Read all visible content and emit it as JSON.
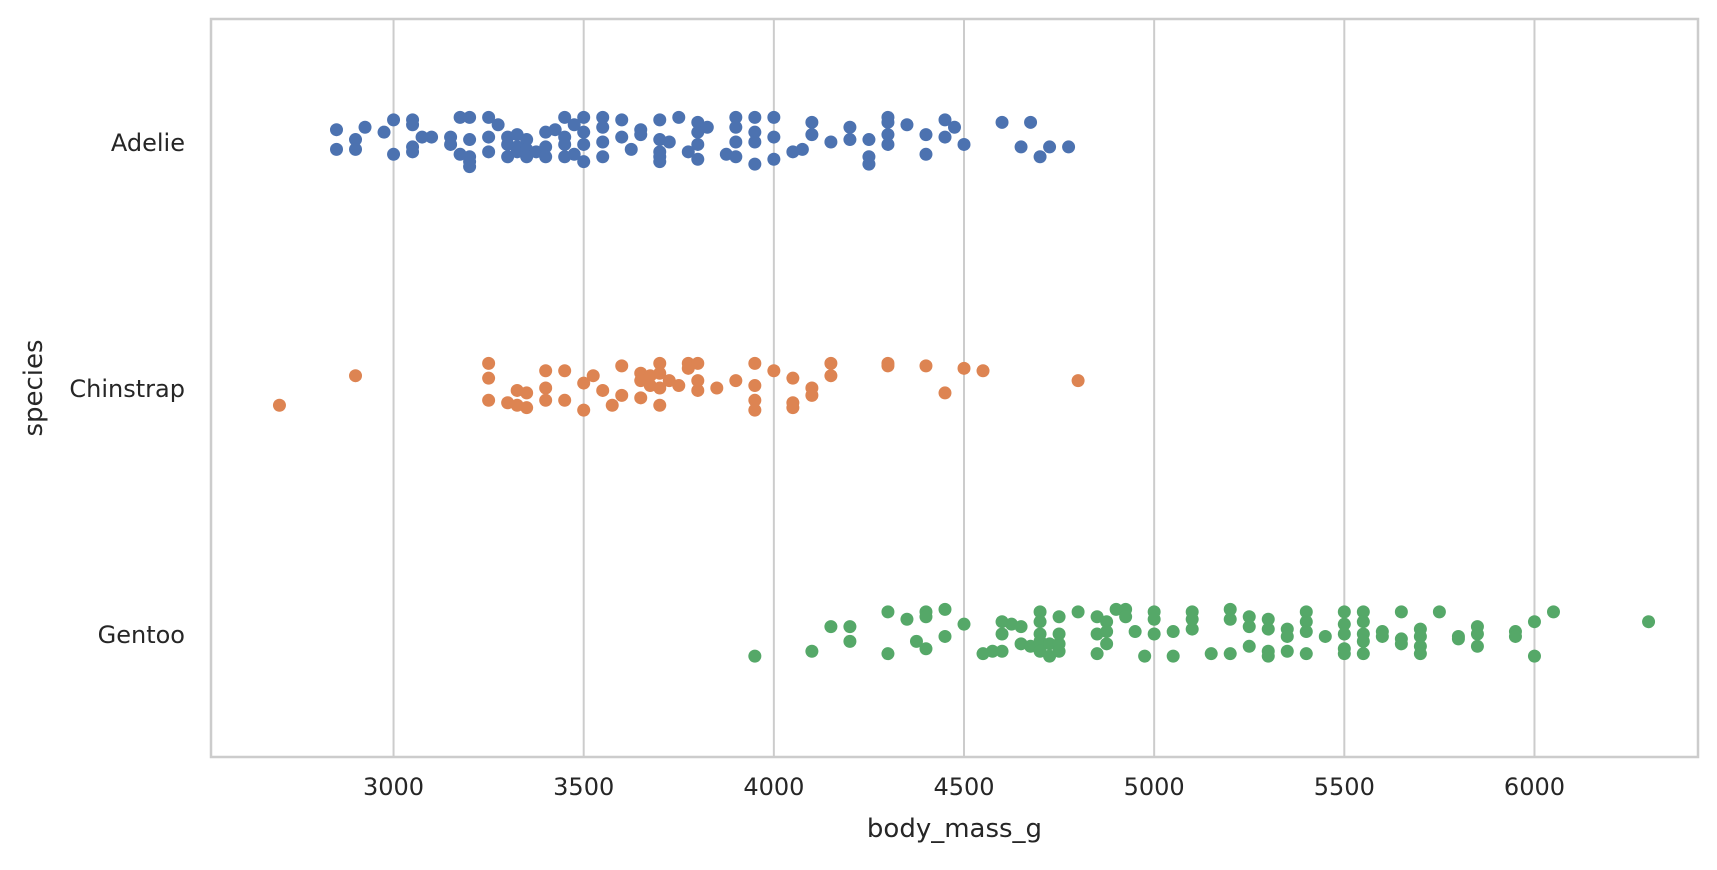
{
  "chart_data": {
    "type": "scatter",
    "subtype": "strip",
    "orientation": "horizontal",
    "xlabel": "body_mass_g",
    "ylabel": "species",
    "xlim": [
      2520,
      6430
    ],
    "xticks": [
      3000,
      3500,
      4000,
      4500,
      5000,
      5500,
      6000
    ],
    "grid": "vertical",
    "categories": [
      "Adelie",
      "Chinstrap",
      "Gentoo"
    ],
    "series": [
      {
        "name": "Adelie",
        "color": "#4c72b0",
        "points": [
          [
            2850,
            -0.05
          ],
          [
            2850,
            0.03
          ],
          [
            2900,
            -0.01
          ],
          [
            2900,
            0.03
          ],
          [
            2925,
            -0.06
          ],
          [
            2975,
            -0.04
          ],
          [
            3000,
            -0.09
          ],
          [
            3000,
            0.05
          ],
          [
            3050,
            -0.09
          ],
          [
            3050,
            -0.07
          ],
          [
            3050,
            0.02
          ],
          [
            3050,
            0.04
          ],
          [
            3075,
            -0.02
          ],
          [
            3100,
            -0.02
          ],
          [
            3150,
            -0.02
          ],
          [
            3150,
            0.01
          ],
          [
            3175,
            -0.1
          ],
          [
            3175,
            0.05
          ],
          [
            3200,
            -0.1
          ],
          [
            3200,
            -0.01
          ],
          [
            3200,
            0.06
          ],
          [
            3200,
            0.08
          ],
          [
            3200,
            0.1
          ],
          [
            3250,
            -0.1
          ],
          [
            3250,
            -0.02
          ],
          [
            3250,
            0.04
          ],
          [
            3275,
            -0.07
          ],
          [
            3300,
            -0.02
          ],
          [
            3300,
            0.01
          ],
          [
            3300,
            0.06
          ],
          [
            3325,
            -0.03
          ],
          [
            3325,
            0.02
          ],
          [
            3325,
            0.04
          ],
          [
            3350,
            -0.01
          ],
          [
            3350,
            0.03
          ],
          [
            3350,
            0.06
          ],
          [
            3375,
            0.04
          ],
          [
            3400,
            -0.04
          ],
          [
            3400,
            0.02
          ],
          [
            3400,
            0.06
          ],
          [
            3425,
            -0.05
          ],
          [
            3450,
            -0.1
          ],
          [
            3450,
            -0.02
          ],
          [
            3450,
            0.01
          ],
          [
            3450,
            0.06
          ],
          [
            3475,
            0.05
          ],
          [
            3475,
            -0.07
          ],
          [
            3500,
            -0.1
          ],
          [
            3500,
            -0.04
          ],
          [
            3500,
            0.01
          ],
          [
            3500,
            0.08
          ],
          [
            3550,
            -0.1
          ],
          [
            3550,
            -0.06
          ],
          [
            3550,
            0.0
          ],
          [
            3550,
            0.06
          ],
          [
            3600,
            -0.09
          ],
          [
            3600,
            -0.02
          ],
          [
            3625,
            0.03
          ],
          [
            3650,
            -0.05
          ],
          [
            3650,
            -0.03
          ],
          [
            3700,
            -0.09
          ],
          [
            3700,
            -0.01
          ],
          [
            3700,
            0.04
          ],
          [
            3700,
            0.06
          ],
          [
            3700,
            0.08
          ],
          [
            3725,
            0.0
          ],
          [
            3750,
            -0.1
          ],
          [
            3775,
            0.04
          ],
          [
            3800,
            -0.08
          ],
          [
            3800,
            -0.04
          ],
          [
            3800,
            0.01
          ],
          [
            3800,
            0.07
          ],
          [
            3825,
            -0.06
          ],
          [
            3875,
            0.05
          ],
          [
            3900,
            -0.1
          ],
          [
            3900,
            -0.06
          ],
          [
            3900,
            0.0
          ],
          [
            3900,
            0.06
          ],
          [
            3950,
            -0.1
          ],
          [
            3950,
            -0.04
          ],
          [
            3950,
            0.0
          ],
          [
            3950,
            0.09
          ],
          [
            4000,
            -0.1
          ],
          [
            4000,
            -0.02
          ],
          [
            4000,
            0.07
          ],
          [
            4050,
            0.04
          ],
          [
            4075,
            0.03
          ],
          [
            4100,
            -0.08
          ],
          [
            4100,
            -0.03
          ],
          [
            4150,
            0.0
          ],
          [
            4200,
            -0.06
          ],
          [
            4200,
            -0.01
          ],
          [
            4250,
            -0.01
          ],
          [
            4250,
            0.06
          ],
          [
            4250,
            0.09
          ],
          [
            4300,
            -0.1
          ],
          [
            4300,
            -0.08
          ],
          [
            4300,
            -0.03
          ],
          [
            4300,
            0.01
          ],
          [
            4350,
            -0.07
          ],
          [
            4400,
            -0.03
          ],
          [
            4400,
            0.05
          ],
          [
            4450,
            -0.09
          ],
          [
            4450,
            -0.02
          ],
          [
            4475,
            -0.06
          ],
          [
            4500,
            0.01
          ],
          [
            4600,
            -0.08
          ],
          [
            4650,
            0.02
          ],
          [
            4675,
            -0.08
          ],
          [
            4700,
            0.06
          ],
          [
            4725,
            0.02
          ],
          [
            4775,
            0.02
          ]
        ]
      },
      {
        "name": "Chinstrap",
        "color": "#dd8452",
        "points": [
          [
            2700,
            0.07
          ],
          [
            2900,
            -0.05
          ],
          [
            3250,
            -0.1
          ],
          [
            3250,
            -0.04
          ],
          [
            3250,
            0.05
          ],
          [
            3300,
            0.06
          ],
          [
            3325,
            0.01
          ],
          [
            3325,
            0.07
          ],
          [
            3350,
            0.02
          ],
          [
            3350,
            0.08
          ],
          [
            3400,
            -0.07
          ],
          [
            3400,
            0.0
          ],
          [
            3400,
            0.05
          ],
          [
            3450,
            -0.07
          ],
          [
            3450,
            0.05
          ],
          [
            3500,
            -0.02
          ],
          [
            3500,
            0.09
          ],
          [
            3525,
            -0.05
          ],
          [
            3550,
            0.01
          ],
          [
            3575,
            0.07
          ],
          [
            3600,
            -0.09
          ],
          [
            3600,
            0.03
          ],
          [
            3650,
            -0.06
          ],
          [
            3650,
            -0.03
          ],
          [
            3650,
            0.04
          ],
          [
            3675,
            -0.05
          ],
          [
            3675,
            -0.01
          ],
          [
            3700,
            -0.1
          ],
          [
            3700,
            -0.06
          ],
          [
            3700,
            0.0
          ],
          [
            3700,
            0.07
          ],
          [
            3725,
            -0.03
          ],
          [
            3750,
            -0.01
          ],
          [
            3775,
            -0.1
          ],
          [
            3775,
            -0.08
          ],
          [
            3800,
            -0.1
          ],
          [
            3800,
            -0.03
          ],
          [
            3800,
            0.01
          ],
          [
            3850,
            0.0
          ],
          [
            3900,
            -0.03
          ],
          [
            3950,
            -0.1
          ],
          [
            3950,
            -0.01
          ],
          [
            3950,
            0.05
          ],
          [
            3950,
            0.09
          ],
          [
            4000,
            -0.07
          ],
          [
            4050,
            -0.04
          ],
          [
            4050,
            0.06
          ],
          [
            4050,
            0.08
          ],
          [
            4100,
            0.0
          ],
          [
            4100,
            0.03
          ],
          [
            4150,
            -0.1
          ],
          [
            4150,
            -0.05
          ],
          [
            4300,
            -0.1
          ],
          [
            4300,
            -0.09
          ],
          [
            4400,
            -0.09
          ],
          [
            4450,
            0.02
          ],
          [
            4500,
            -0.08
          ],
          [
            4550,
            -0.07
          ],
          [
            4800,
            -0.03
          ]
        ]
      },
      {
        "name": "Gentoo",
        "color": "#55a868",
        "points": [
          [
            3950,
            0.09
          ],
          [
            4100,
            0.07
          ],
          [
            4150,
            -0.03
          ],
          [
            4200,
            -0.03
          ],
          [
            4200,
            0.03
          ],
          [
            4300,
            -0.09
          ],
          [
            4300,
            0.08
          ],
          [
            4350,
            -0.06
          ],
          [
            4375,
            0.03
          ],
          [
            4400,
            -0.09
          ],
          [
            4400,
            -0.07
          ],
          [
            4400,
            0.06
          ],
          [
            4450,
            -0.1
          ],
          [
            4450,
            0.01
          ],
          [
            4500,
            -0.04
          ],
          [
            4550,
            0.08
          ],
          [
            4575,
            0.07
          ],
          [
            4600,
            -0.05
          ],
          [
            4600,
            0.0
          ],
          [
            4600,
            0.07
          ],
          [
            4625,
            -0.04
          ],
          [
            4650,
            -0.03
          ],
          [
            4650,
            0.04
          ],
          [
            4675,
            0.05
          ],
          [
            4700,
            -0.09
          ],
          [
            4700,
            -0.05
          ],
          [
            4700,
            0.0
          ],
          [
            4700,
            0.03
          ],
          [
            4700,
            0.07
          ],
          [
            4725,
            0.04
          ],
          [
            4725,
            0.09
          ],
          [
            4750,
            -0.07
          ],
          [
            4750,
            0.0
          ],
          [
            4750,
            0.04
          ],
          [
            4750,
            0.07
          ],
          [
            4800,
            -0.09
          ],
          [
            4850,
            -0.07
          ],
          [
            4850,
            0.0
          ],
          [
            4850,
            0.08
          ],
          [
            4875,
            -0.05
          ],
          [
            4875,
            -0.01
          ],
          [
            4875,
            0.04
          ],
          [
            4900,
            -0.1
          ],
          [
            4925,
            -0.1
          ],
          [
            4925,
            -0.07
          ],
          [
            4950,
            -0.01
          ],
          [
            4975,
            0.09
          ],
          [
            5000,
            -0.09
          ],
          [
            5000,
            -0.06
          ],
          [
            5000,
            0.0
          ],
          [
            5050,
            -0.01
          ],
          [
            5050,
            0.09
          ],
          [
            5100,
            -0.09
          ],
          [
            5100,
            -0.06
          ],
          [
            5100,
            -0.02
          ],
          [
            5150,
            0.08
          ],
          [
            5200,
            -0.1
          ],
          [
            5200,
            -0.06
          ],
          [
            5200,
            0.08
          ],
          [
            5250,
            -0.07
          ],
          [
            5250,
            -0.03
          ],
          [
            5250,
            0.05
          ],
          [
            5300,
            -0.06
          ],
          [
            5300,
            -0.02
          ],
          [
            5300,
            0.07
          ],
          [
            5300,
            0.09
          ],
          [
            5350,
            -0.02
          ],
          [
            5350,
            0.01
          ],
          [
            5350,
            0.07
          ],
          [
            5400,
            -0.09
          ],
          [
            5400,
            -0.05
          ],
          [
            5400,
            -0.01
          ],
          [
            5400,
            0.08
          ],
          [
            5450,
            0.01
          ],
          [
            5500,
            -0.09
          ],
          [
            5500,
            -0.04
          ],
          [
            5500,
            0.0
          ],
          [
            5500,
            0.06
          ],
          [
            5500,
            0.08
          ],
          [
            5550,
            -0.09
          ],
          [
            5550,
            -0.05
          ],
          [
            5550,
            0.0
          ],
          [
            5550,
            0.03
          ],
          [
            5550,
            0.08
          ],
          [
            5600,
            -0.01
          ],
          [
            5600,
            0.01
          ],
          [
            5650,
            -0.09
          ],
          [
            5650,
            0.02
          ],
          [
            5650,
            0.04
          ],
          [
            5700,
            -0.02
          ],
          [
            5700,
            0.01
          ],
          [
            5700,
            0.05
          ],
          [
            5700,
            0.08
          ],
          [
            5750,
            -0.09
          ],
          [
            5800,
            0.01
          ],
          [
            5800,
            0.02
          ],
          [
            5850,
            -0.03
          ],
          [
            5850,
            0.0
          ],
          [
            5850,
            0.05
          ],
          [
            5950,
            -0.01
          ],
          [
            5950,
            0.01
          ],
          [
            6000,
            -0.05
          ],
          [
            6000,
            0.09
          ],
          [
            6050,
            -0.09
          ],
          [
            6300,
            -0.05
          ]
        ]
      }
    ]
  }
}
